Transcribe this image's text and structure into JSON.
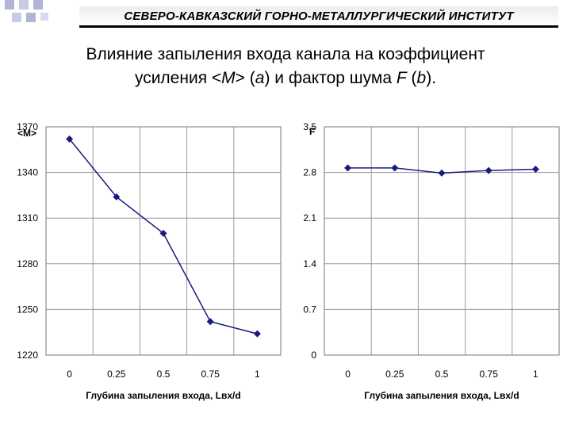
{
  "header": {
    "institute": "СЕВЕРО-КАВКАЗСКИЙ ГОРНО-МЕТАЛЛУРГИЧЕСКИЙ ИНСТИТУТ"
  },
  "slide": {
    "title_line1": "Влияние запыления входа канала на коэффициент",
    "title_line2_a": "усиления <",
    "title_line2_b": "M",
    "title_line2_c": "> (",
    "title_line2_d": "a",
    "title_line2_e": ") и фактор шума ",
    "title_line2_f": "F",
    "title_line2_g": " (",
    "title_line2_h": "b",
    "title_line2_i": ")."
  },
  "colors": {
    "line": "#1a1a80",
    "grid": "#9a9a9a",
    "deco": "#b0b4d8",
    "accent": "#000000"
  },
  "chart_data": [
    {
      "type": "line",
      "ylabel": "<M>",
      "xlabel": "Глубина запыления входа, Lвх/d",
      "x": [
        0,
        0.25,
        0.5,
        0.75,
        1
      ],
      "xticks": [
        "0",
        "0.25",
        "0.5",
        "0.75",
        "1"
      ],
      "y": [
        1362,
        1324,
        1300,
        1242,
        1234
      ],
      "ylim": [
        1220,
        1370
      ],
      "yticks": [
        "1220",
        "1250",
        "1280",
        "1310",
        "1340",
        "1370"
      ],
      "grid": true
    },
    {
      "type": "line",
      "ylabel": "F",
      "xlabel": "Глубина запыления входа, Lвх/d",
      "x": [
        0,
        0.25,
        0.5,
        0.75,
        1
      ],
      "xticks": [
        "0",
        "0.25",
        "0.5",
        "0.75",
        "1"
      ],
      "y": [
        2.87,
        2.87,
        2.79,
        2.83,
        2.85
      ],
      "ylim": [
        0,
        3.5
      ],
      "yticks": [
        "0",
        "0.7",
        "1.4",
        "2.1",
        "2.8",
        "3.5"
      ],
      "grid": true
    }
  ]
}
